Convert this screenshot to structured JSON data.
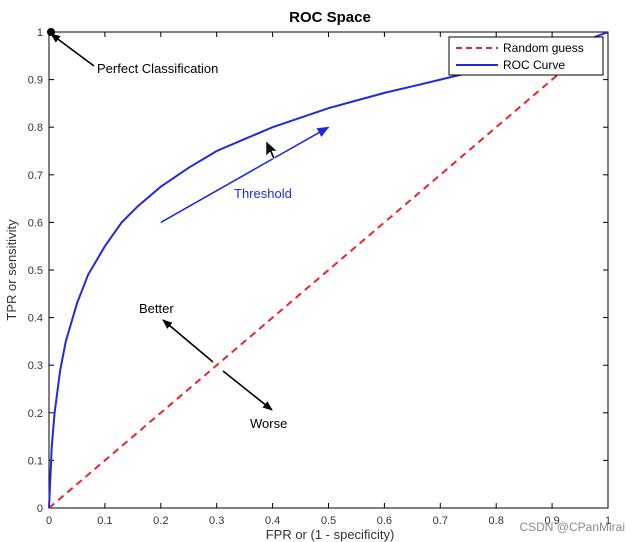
{
  "chart_data": {
    "type": "line",
    "title": "ROC Space",
    "xlabel": "FPR or (1 - specificity)",
    "ylabel": "TPR or sensitivity",
    "xlim": [
      0,
      1
    ],
    "ylim": [
      0,
      1
    ],
    "xticks": [
      0,
      0.1,
      0.2,
      0.3,
      0.4,
      0.5,
      0.6,
      0.7,
      0.8,
      0.9,
      1
    ],
    "yticks": [
      0,
      0.1,
      0.2,
      0.3,
      0.4,
      0.5,
      0.6,
      0.7,
      0.8,
      0.9,
      1
    ],
    "xtick_labels": [
      "0",
      "0.1",
      "0.2",
      "0.3",
      "0.4",
      "0.5",
      "0.6",
      "0.7",
      "0.8",
      "0.9",
      "1"
    ],
    "ytick_labels": [
      "0",
      "0.1",
      "0.2",
      "0.3",
      "0.4",
      "0.5",
      "0.6",
      "0.7",
      "0.8",
      "0.9",
      "1"
    ],
    "grid": false,
    "legend_position": "top-right",
    "series": [
      {
        "name": "Random guess",
        "color": "#e8252b",
        "style": "dashed",
        "x": [
          0,
          1
        ],
        "y": [
          0,
          1
        ]
      },
      {
        "name": "ROC Curve",
        "color": "#1f2bd6",
        "style": "solid",
        "x": [
          0,
          0.005,
          0.01,
          0.02,
          0.03,
          0.05,
          0.07,
          0.1,
          0.13,
          0.16,
          0.2,
          0.25,
          0.3,
          0.35,
          0.4,
          0.45,
          0.5,
          0.55,
          0.6,
          0.65,
          0.7,
          0.75,
          0.8,
          0.85,
          0.9,
          0.95,
          1
        ],
        "y": [
          0,
          0.13,
          0.2,
          0.29,
          0.35,
          0.43,
          0.49,
          0.55,
          0.6,
          0.635,
          0.675,
          0.715,
          0.75,
          0.775,
          0.8,
          0.82,
          0.84,
          0.856,
          0.872,
          0.886,
          0.9,
          0.914,
          0.928,
          0.944,
          0.96,
          0.978,
          1
        ]
      }
    ],
    "annotations": [
      {
        "text": "Perfect Classification",
        "point": [
          0,
          1
        ]
      },
      {
        "text": "Threshold",
        "arrow_from": [
          0.2,
          0.6
        ],
        "arrow_to": [
          0.5,
          0.8
        ]
      },
      {
        "text": "Better",
        "direction": "toward top-left"
      },
      {
        "text": "Worse",
        "direction": "toward bottom-right"
      }
    ]
  },
  "watermark": "CSDN @CPanMirai"
}
